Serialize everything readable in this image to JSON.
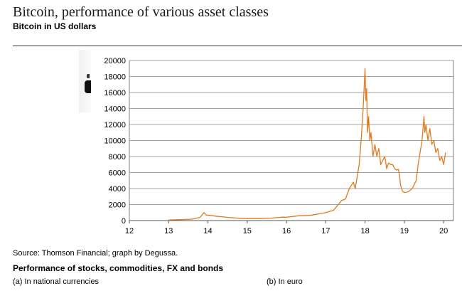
{
  "header": {
    "title": "Bitcoin, performance of various asset classes",
    "subtitle": "Bitcoin in US dollars"
  },
  "chart_data": {
    "type": "line",
    "title": "",
    "xlabel": "",
    "ylabel": "",
    "xlim": [
      12,
      20.25
    ],
    "ylim": [
      0,
      20000
    ],
    "xticks": [
      "12",
      "13",
      "14",
      "15",
      "16",
      "17",
      "18",
      "19",
      "20"
    ],
    "yticks": [
      "0",
      "2000",
      "4000",
      "6000",
      "8000",
      "10000",
      "12000",
      "14000",
      "16000",
      "18000",
      "20000"
    ],
    "grid": true,
    "series": [
      {
        "color": "#e07b1f",
        "x": [
          13.0,
          13.3,
          13.6,
          13.8,
          13.9,
          13.95,
          14.05,
          14.2,
          14.5,
          14.8,
          15.0,
          15.3,
          15.6,
          15.9,
          16.0,
          16.3,
          16.6,
          16.9,
          17.0,
          17.2,
          17.4,
          17.5,
          17.6,
          17.7,
          17.75,
          17.85,
          17.9,
          17.95,
          17.98,
          18.0,
          18.02,
          18.04,
          18.06,
          18.09,
          18.12,
          18.15,
          18.2,
          18.25,
          18.3,
          18.35,
          18.4,
          18.45,
          18.5,
          18.55,
          18.6,
          18.65,
          18.7,
          18.75,
          18.8,
          18.85,
          18.88,
          18.9,
          18.95,
          19.0,
          19.1,
          19.2,
          19.3,
          19.35,
          19.4,
          19.45,
          19.5,
          19.52,
          19.55,
          19.6,
          19.65,
          19.7,
          19.75,
          19.8,
          19.85,
          19.9,
          19.95,
          20.0,
          20.05
        ],
        "y": [
          80,
          120,
          180,
          400,
          1000,
          700,
          650,
          550,
          400,
          280,
          250,
          250,
          300,
          430,
          420,
          600,
          650,
          900,
          1000,
          1300,
          2500,
          2700,
          4000,
          4800,
          4000,
          7000,
          10000,
          14000,
          17000,
          19000,
          15000,
          16500,
          11000,
          13000,
          10000,
          11000,
          8000,
          9500,
          8000,
          9000,
          7000,
          7500,
          8000,
          6500,
          7200,
          7000,
          7000,
          6500,
          6300,
          6400,
          5500,
          4500,
          3700,
          3500,
          3600,
          4000,
          5000,
          7000,
          8500,
          10000,
          13000,
          11000,
          12000,
          10000,
          11500,
          9500,
          10000,
          8500,
          9000,
          7500,
          8000,
          7000,
          8500
        ]
      }
    ]
  },
  "footer": {
    "source": "Source: Thomson Financial; graph by Degussa.",
    "section_title": "Performance of stocks, commodities, FX and bonds",
    "sub_a": "(a) In national currencies",
    "sub_b": "(b) In euro"
  }
}
